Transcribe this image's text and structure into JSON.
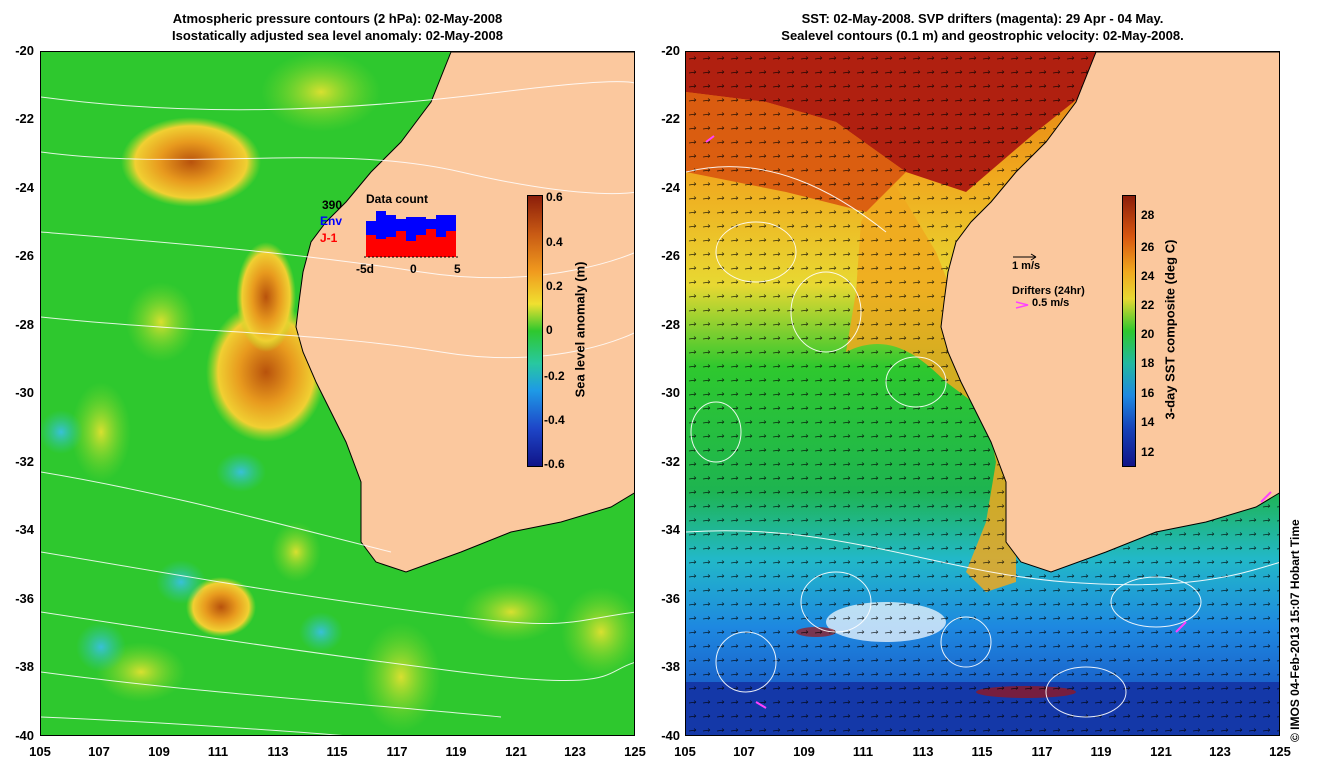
{
  "left_panel": {
    "title_line1": "Atmospheric pressure contours (2 hPa): 02-May-2008",
    "title_line2": "Isostatically adjusted sea level anomaly: 02-May-2008",
    "colorbar_label": "Sea level anomaly (m)",
    "colorbar_ticks": [
      "0.6",
      "0.4",
      "0.2",
      "0",
      "-0.2",
      "-0.4",
      "-0.6"
    ],
    "inset": {
      "count": "390",
      "env_label": "Env",
      "j1_label": "J-1",
      "title": "Data count",
      "x_ticks": [
        "-5d",
        "0",
        "5"
      ]
    }
  },
  "right_panel": {
    "title_line1": "SST: 02-May-2008. SVP drifters (magenta): 29 Apr - 04 May.",
    "title_line2": "Sealevel contours (0.1 m) and geostrophic velocity: 02-May-2008.",
    "colorbar_label": "3-day SST composite (deg C)",
    "colorbar_ticks": [
      "28",
      "26",
      "24",
      "22",
      "20",
      "18",
      "16",
      "14",
      "12"
    ],
    "velocity_label": "1 m/s",
    "drifters_label": "Drifters (24hr)",
    "drifters_speed": "0.5 m/s"
  },
  "y_ticks": [
    "-20",
    "-22",
    "-24",
    "-26",
    "-28",
    "-30",
    "-32",
    "-34",
    "-36",
    "-38",
    "-40"
  ],
  "x_ticks": [
    "105",
    "107",
    "109",
    "111",
    "113",
    "115",
    "117",
    "119",
    "121",
    "123",
    "125"
  ],
  "credit": "© IMOS 04-Feb-2013 15:07 Hobart Time",
  "colors": {
    "land": "#fbc89e",
    "sla_mid": "#2ec82e",
    "sla_high": "#c85a14",
    "sst_warm": "#a01414",
    "sst_cool": "#1650c8",
    "drifter": "#ff40ff"
  }
}
